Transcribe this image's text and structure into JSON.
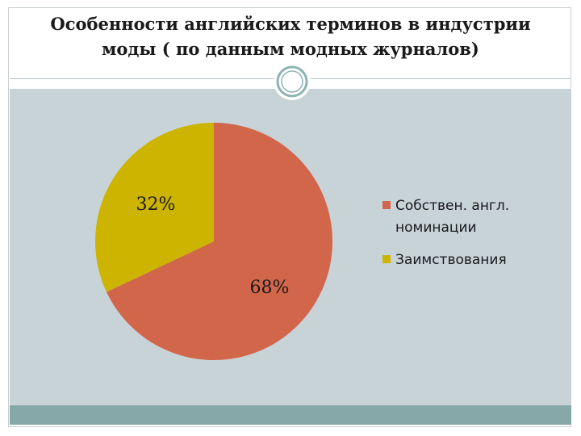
{
  "slide": {
    "title_line1": "Особенности английских терминов в индустрии",
    "title_line2": "моды ( по данным модных журналов)"
  },
  "colors": {
    "background": "#c8d3d8",
    "footer": "#87a8a8",
    "accent_ring": "#8fb3b3"
  },
  "chart_data": {
    "type": "pie",
    "slices": [
      {
        "legend_lines": [
          "Собствен. англ.",
          "номинации"
        ],
        "value": 68,
        "label": "68%",
        "color": "#d2664a"
      },
      {
        "legend_lines": [
          "Заимствования"
        ],
        "value": 32,
        "label": "32%",
        "color": "#ccb400"
      }
    ],
    "legend_position": "right"
  }
}
